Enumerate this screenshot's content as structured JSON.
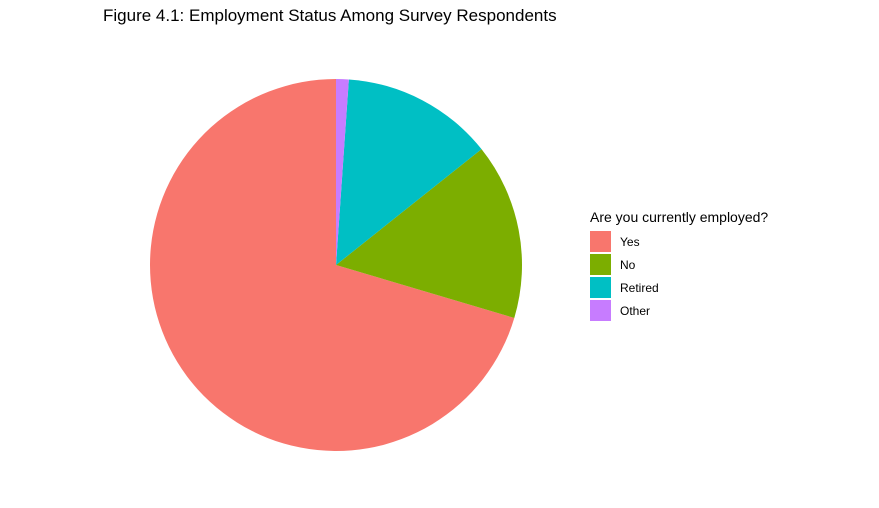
{
  "chart_data": {
    "type": "pie",
    "title": "Figure 4.1: Employment Status Among Survey Respondents",
    "legend": {
      "title": "Are you currently employed?",
      "placement": "right"
    },
    "categories": [
      "Yes",
      "No",
      "Retired",
      "Other"
    ],
    "values": [
      70.4,
      15.3,
      13.2,
      1.1
    ],
    "unit": "percent of respondents",
    "colors": [
      "#F8766D",
      "#7CAE00",
      "#00BFC4",
      "#C77CFF"
    ],
    "start_angle": "12 o'clock",
    "direction": "counterclockwise"
  }
}
